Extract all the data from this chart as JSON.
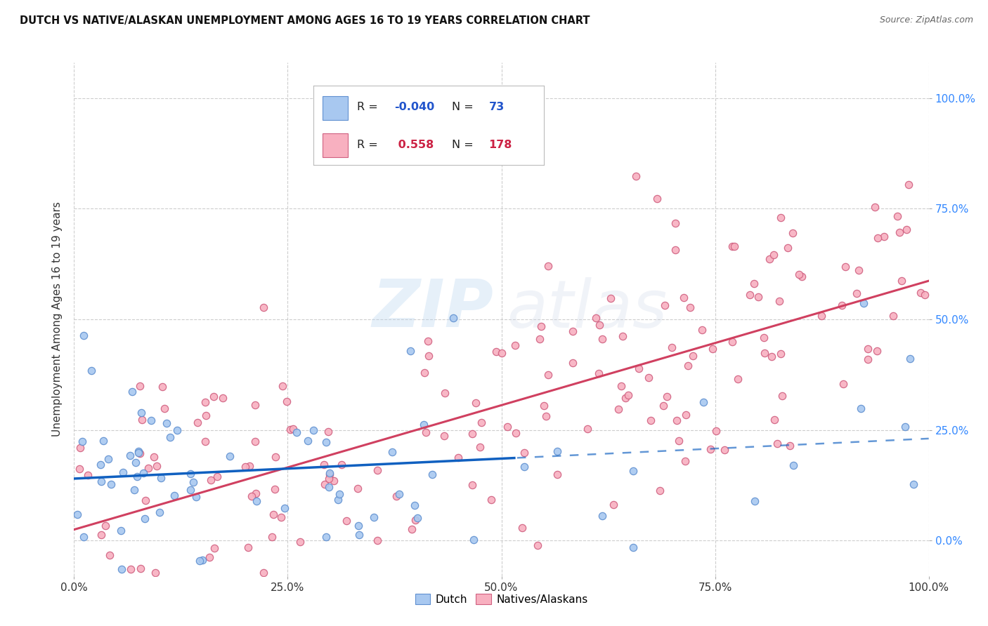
{
  "title": "DUTCH VS NATIVE/ALASKAN UNEMPLOYMENT AMONG AGES 16 TO 19 YEARS CORRELATION CHART",
  "source": "Source: ZipAtlas.com",
  "ylabel": "Unemployment Among Ages 16 to 19 years",
  "ytick_values": [
    0,
    25,
    50,
    75,
    100
  ],
  "xtick_values": [
    0,
    25,
    50,
    75,
    100
  ],
  "dutch_color": "#A8C8F0",
  "dutch_edge": "#6090D0",
  "native_color": "#F8B0C0",
  "native_edge": "#D06080",
  "dutch_line_color": "#1060C0",
  "native_line_color": "#D04060",
  "legend_dutch_r": "-0.040",
  "legend_dutch_n": "73",
  "legend_native_r": "0.558",
  "legend_native_n": "178",
  "r_value_color_dutch": "#2255CC",
  "n_value_color_dutch": "#2255CC",
  "r_value_color_native": "#CC2244",
  "n_value_color_native": "#CC2244",
  "watermark_zip": "ZIP",
  "watermark_atlas": "atlas",
  "background_color": "#FFFFFF",
  "grid_color": "#C8C8C8",
  "ytick_color": "#3388FF",
  "xlim": [
    0,
    100
  ],
  "ylim": [
    -8,
    108
  ],
  "seed_dutch": 7,
  "seed_native": 99,
  "n_dutch": 73,
  "n_native": 178
}
